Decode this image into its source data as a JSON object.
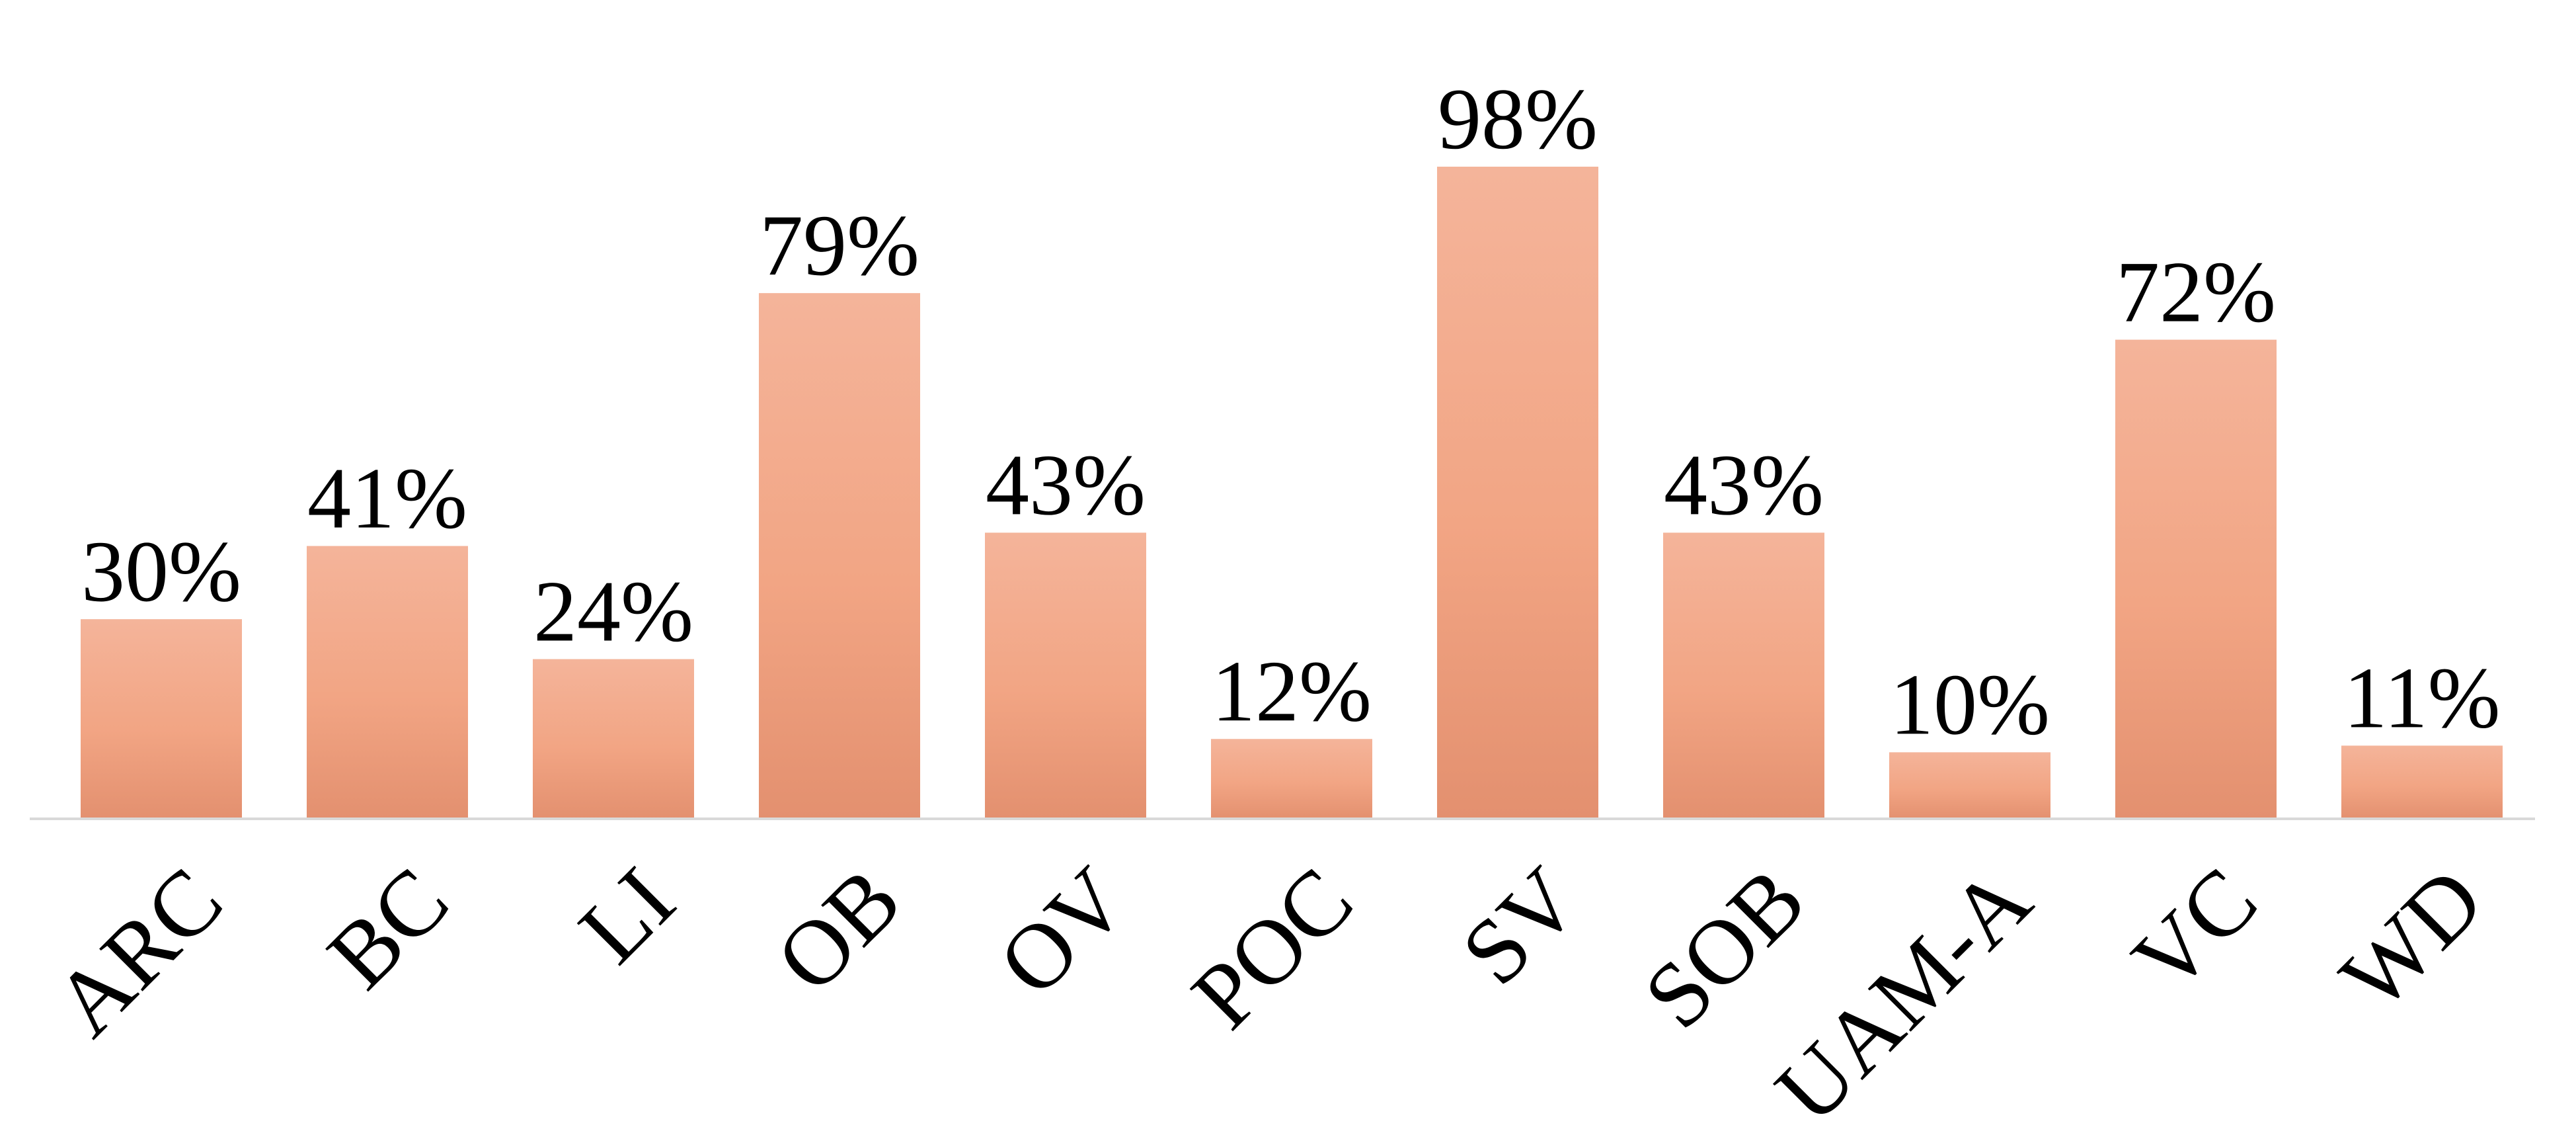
{
  "chart_data": {
    "type": "bar",
    "title": "",
    "xlabel": "",
    "ylabel": "",
    "categories": [
      "ARC",
      "BC",
      "LI",
      "OB",
      "OV",
      "POC",
      "SV",
      "SOB",
      "UAM-A",
      "VC",
      "WD"
    ],
    "values": [
      30,
      41,
      24,
      79,
      43,
      12,
      98,
      43,
      10,
      72,
      11
    ],
    "data_labels": [
      "30%",
      "41%",
      "24%",
      "79%",
      "43%",
      "12%",
      "98%",
      "43%",
      "10%",
      "72%",
      "11%"
    ],
    "ylim": [
      0,
      100
    ],
    "grid": false,
    "legend": "none",
    "tick_label_rotation": "diagonal",
    "colors": {
      "bar_top": "#F4B49A",
      "bar_mid": "#F2A584",
      "bar_bottom": "#E3906F",
      "baseline": "#D9D9D9",
      "text": "#000000"
    }
  }
}
